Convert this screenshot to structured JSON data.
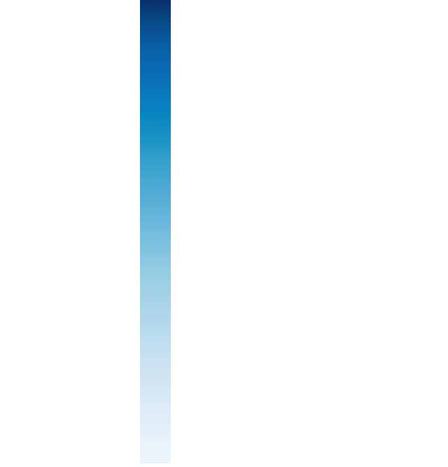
{
  "color_bar": {
    "orientation": "vertical",
    "color_stops": [
      "#08306b",
      "#084b8a",
      "#0a5ea6",
      "#0b6ab4",
      "#0a78be",
      "#0786c2",
      "#1b93c6",
      "#36a0cd",
      "#4aa9d3",
      "#5db2d8",
      "#72bcdd",
      "#86c5e1",
      "#98cde4",
      "#a7d3e8",
      "#b4d8ec",
      "#c1dff0",
      "#cde3f2",
      "#d6e8f5",
      "#dfedf8",
      "#e7f2fb",
      "#eef6fd"
    ]
  }
}
